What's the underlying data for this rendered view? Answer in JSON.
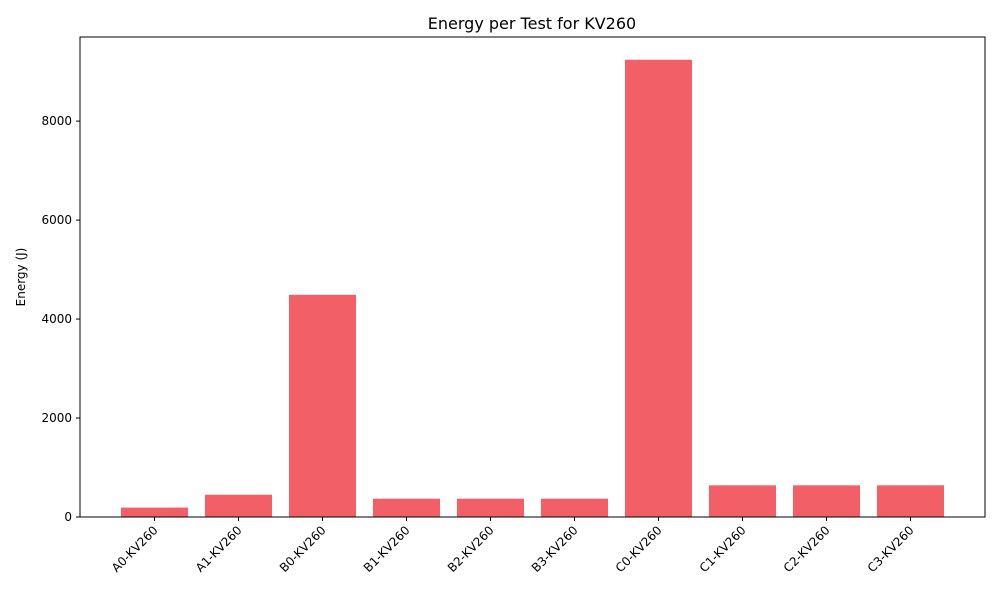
{
  "chart_data": {
    "type": "bar",
    "title": "Energy per Test for KV260",
    "xlabel": "",
    "ylabel": "Energy (J)",
    "categories": [
      "A0-KV260",
      "A1-KV260",
      "B0-KV260",
      "B1-KV260",
      "B2-KV260",
      "B3-KV260",
      "C0-KV260",
      "C1-KV260",
      "C2-KV260",
      "C3-KV260"
    ],
    "values": [
      190,
      450,
      4490,
      370,
      370,
      370,
      9240,
      640,
      640,
      640
    ],
    "ylim": [
      0,
      9700
    ],
    "yticks": [
      0,
      2000,
      4000,
      6000,
      8000
    ],
    "ytick_labels": [
      "0",
      "2000",
      "4000",
      "6000",
      "8000"
    ],
    "bar_color": "#f25f66",
    "grid": false,
    "legend": "none"
  }
}
